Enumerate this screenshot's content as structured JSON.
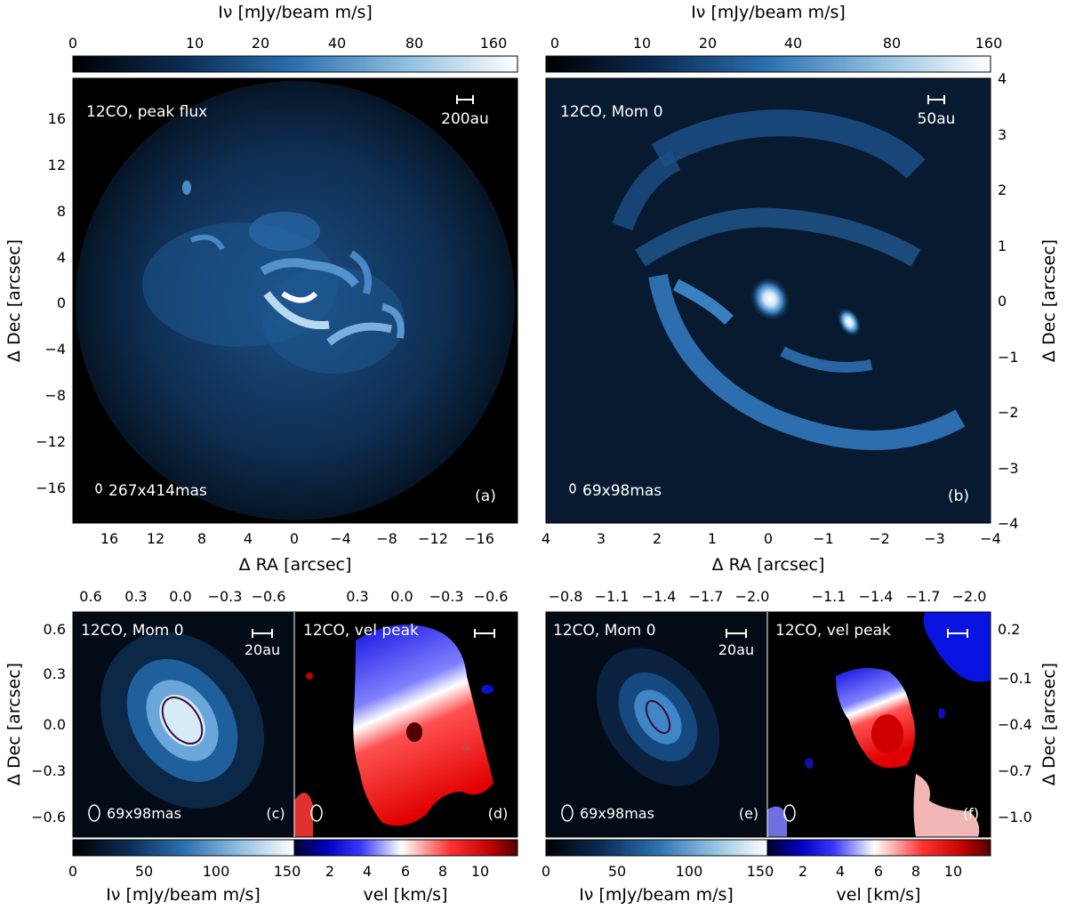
{
  "colorbars": {
    "top_a": {
      "label": "Iν [mJy/beam m/s]",
      "ticks": [
        "0",
        "10",
        "20",
        "40",
        "80",
        "160"
      ]
    },
    "top_b": {
      "label": "Iν [mJy/beam m/s]",
      "ticks": [
        "0",
        "10",
        "20",
        "40",
        "80",
        "160"
      ]
    },
    "bottom_flux_left": {
      "label": "Iν [mJy/beam m/s]",
      "ticks": [
        "0",
        "50",
        "100",
        "150"
      ]
    },
    "bottom_vel_left": {
      "label": "vel [km/s]",
      "ticks": [
        "2",
        "4",
        "6",
        "8",
        "10"
      ]
    },
    "bottom_flux_right": {
      "label": "Iν [mJy/beam m/s]",
      "ticks": [
        "0",
        "50",
        "100",
        "150"
      ]
    },
    "bottom_vel_right": {
      "label": "vel [km/s]",
      "ticks": [
        "2",
        "4",
        "6",
        "8",
        "10"
      ]
    }
  },
  "panels": {
    "a": {
      "title": "12CO, peak flux",
      "scalebar": "200au",
      "beam": "267x414mas",
      "tag": "(a)",
      "xlabel": "Δ RA [arcsec]",
      "ylabel": "Δ Dec [arcsec]",
      "xticks": [
        "16",
        "12",
        "8",
        "4",
        "0",
        "−4",
        "−8",
        "−12",
        "−16"
      ],
      "yticks": [
        "16",
        "12",
        "8",
        "4",
        "0",
        "−4",
        "−8",
        "−12",
        "−16"
      ]
    },
    "b": {
      "title": "12CO, Mom 0",
      "scalebar": "50au",
      "beam": "69x98mas",
      "tag": "(b)",
      "xlabel": "Δ RA [arcsec]",
      "ylabel": "Δ Dec [arcsec]",
      "xticks": [
        "4",
        "3",
        "2",
        "1",
        "0",
        "−1",
        "−2",
        "−3",
        "−4"
      ],
      "yticks": [
        "4",
        "3",
        "2",
        "1",
        "0",
        "−1",
        "−2",
        "−3",
        "−4"
      ]
    },
    "c": {
      "title": "12CO, Mom 0",
      "scalebar": "20au",
      "beam": "69x98mas",
      "tag": "(c)",
      "ylabel": "Δ Dec [arcsec]",
      "xticks_top": [
        "0.6",
        "0.3",
        "0.0",
        "−0.3",
        "−0.6"
      ],
      "yticks": [
        "0.6",
        "0.3",
        "0.0",
        "−0.3",
        "−0.6"
      ]
    },
    "d": {
      "title": "12CO, vel peak",
      "tag": "(d)",
      "xticks_top": [
        "0.3",
        "0.0",
        "−0.3",
        "−0.6"
      ]
    },
    "e": {
      "title": "12CO, Mom 0",
      "scalebar": "20au",
      "beam": "69x98mas",
      "tag": "(e)",
      "xticks_top": [
        "−0.8",
        "−1.1",
        "−1.4",
        "−1.7",
        "−2.0"
      ]
    },
    "f": {
      "title": "12CO, vel peak",
      "tag": "(f)",
      "ylabel": "Δ Dec [arcsec]",
      "xticks_top": [
        "−1.1",
        "−1.4",
        "−1.7",
        "−2.0"
      ],
      "yticks": [
        "0.2",
        "−0.1",
        "−0.4",
        "−0.7",
        "−1.0"
      ]
    }
  },
  "colors": {
    "flux_dark": "#000000",
    "flux_mid": "#1a5590",
    "flux_light": "#ffffff",
    "vel_blue": "#0000ff",
    "vel_white": "#ffffff",
    "vel_red": "#d00000",
    "contour": "#3a0a3a"
  }
}
